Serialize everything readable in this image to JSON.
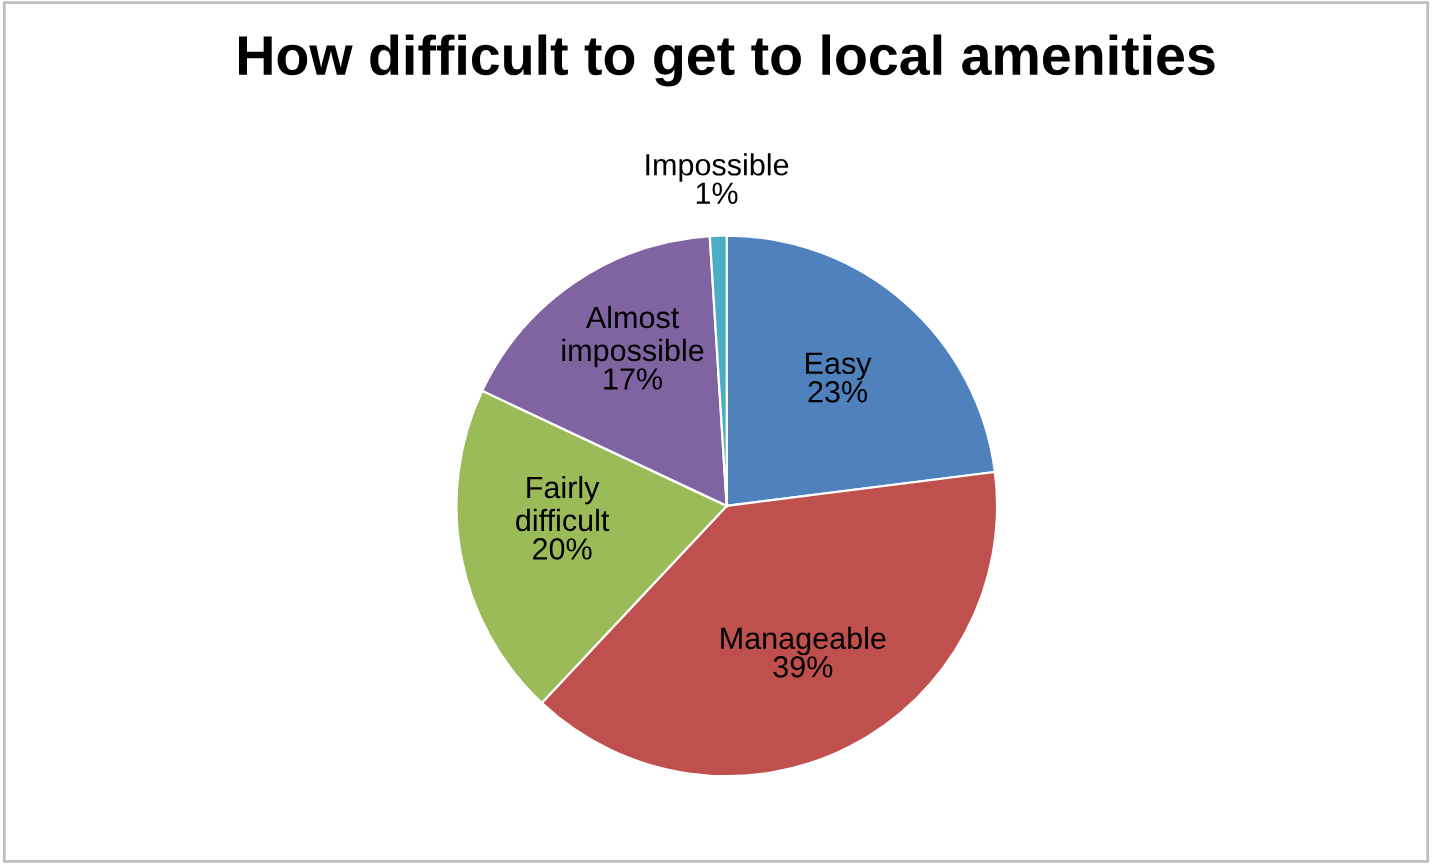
{
  "chart_data": {
    "type": "pie",
    "title": "How difficult to get to local amenities",
    "categories": [
      "Easy",
      "Manageable",
      "Fairly difficult",
      "Almost impossible",
      "Impossible"
    ],
    "values": [
      23,
      39,
      20,
      17,
      1
    ],
    "value_labels": [
      "23%",
      "39%",
      "20%",
      "17%",
      "1%"
    ],
    "colors": [
      "#4f81bd",
      "#c0504d",
      "#9bbb59",
      "#8064a2",
      "#4bacc6"
    ],
    "legend": false
  }
}
